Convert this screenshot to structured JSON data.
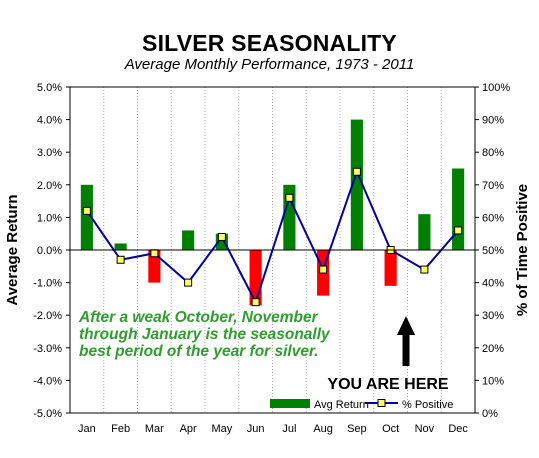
{
  "chart_data": {
    "type": "bar",
    "title": "SILVER SEASONALITY",
    "subtitle": "Average Monthly Performance, 1973 - 2011",
    "ylabel": "Average Return",
    "y2label": "% of Time Positive",
    "categories": [
      "Jan",
      "Feb",
      "Mar",
      "Apr",
      "May",
      "Jun",
      "Jul",
      "Aug",
      "Sep",
      "Oct",
      "Nov",
      "Dec"
    ],
    "ylim": [
      -5.0,
      5.0
    ],
    "y2lim": [
      0,
      100
    ],
    "yticks": [
      "5.0%",
      "4.0%",
      "3.0%",
      "2.0%",
      "1.0%",
      "0.0%",
      "-1.0%",
      "-2.0%",
      "-3.0%",
      "-4.0%",
      "-5.0%"
    ],
    "y2ticks": [
      "100%",
      "90%",
      "80%",
      "70%",
      "60%",
      "50%",
      "40%",
      "30%",
      "20%",
      "10%",
      "0%"
    ],
    "grid": "vertical dotted",
    "series": [
      {
        "name": "Avg Return",
        "type": "bar",
        "axis": "left",
        "values": [
          2.0,
          0.2,
          -1.0,
          0.6,
          0.5,
          -1.7,
          2.0,
          -1.4,
          4.0,
          -1.1,
          1.1,
          2.5
        ],
        "color_positive": "#008000",
        "color_negative": "#ff0000"
      },
      {
        "name": "% Positive",
        "type": "line",
        "axis": "right",
        "values": [
          62,
          47,
          49,
          40,
          54,
          34,
          66,
          44,
          74,
          50,
          44,
          56
        ],
        "line_color": "#0000a0",
        "marker_color": "#ffff66"
      }
    ],
    "legend_position": "bottom-right",
    "annotation": {
      "lines": [
        "After a weak October, November",
        "through January is the seasonally",
        "best period of the year for silver."
      ],
      "color": "#2e9e2e"
    },
    "marker": {
      "label": "YOU ARE HERE",
      "points_to": "Oct"
    }
  }
}
